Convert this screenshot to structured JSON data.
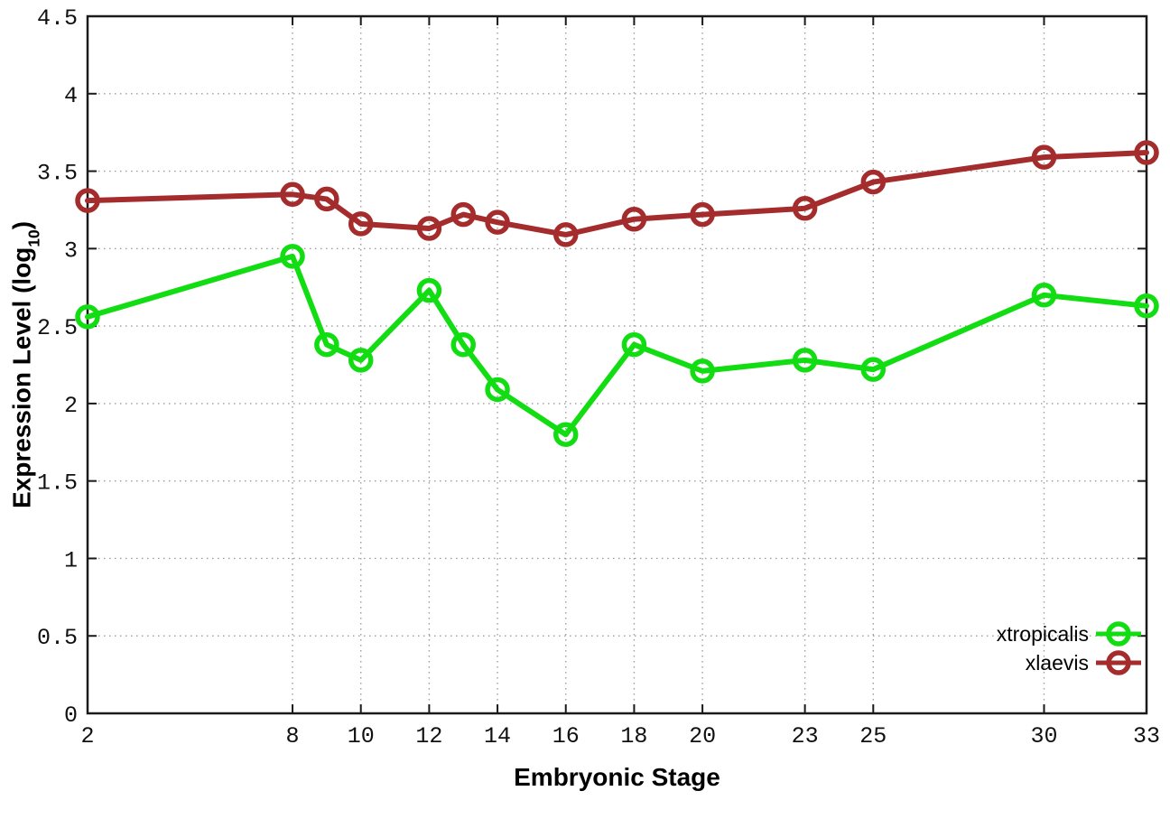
{
  "chart_data": {
    "type": "line",
    "title": "",
    "xlabel": "Embryonic Stage",
    "ylabel": "Expression Level (log10)",
    "ylabel_parts": {
      "prefix": "Expression Level (log",
      "sub": "10",
      "suffix": ")"
    },
    "xlim": [
      2,
      33
    ],
    "ylim": [
      0,
      4.5
    ],
    "grid": true,
    "legend_position": "bottom-right-inside",
    "x_ticks": [
      2,
      8,
      10,
      12,
      14,
      16,
      18,
      20,
      23,
      25,
      30,
      33
    ],
    "y_ticks": [
      0,
      0.5,
      1,
      1.5,
      2,
      2.5,
      3,
      3.5,
      4,
      4.5
    ],
    "x": [
      2,
      8,
      9,
      10,
      12,
      13,
      14,
      16,
      18,
      20,
      23,
      25,
      30,
      33
    ],
    "series": [
      {
        "name": "xtropicalis",
        "color": "#12dd12",
        "values": [
          2.56,
          2.95,
          2.38,
          2.28,
          2.73,
          2.38,
          2.09,
          1.8,
          2.38,
          2.21,
          2.28,
          2.22,
          2.7,
          2.63
        ]
      },
      {
        "name": "xlaevis",
        "color": "#a52c2c",
        "values": [
          3.31,
          3.35,
          3.32,
          3.16,
          3.13,
          3.22,
          3.17,
          3.09,
          3.19,
          3.22,
          3.26,
          3.43,
          3.59,
          3.62
        ]
      }
    ],
    "colors": {
      "axis": "#1a1a1a",
      "grid": "#9e9e9e",
      "background": "#ffffff"
    }
  }
}
